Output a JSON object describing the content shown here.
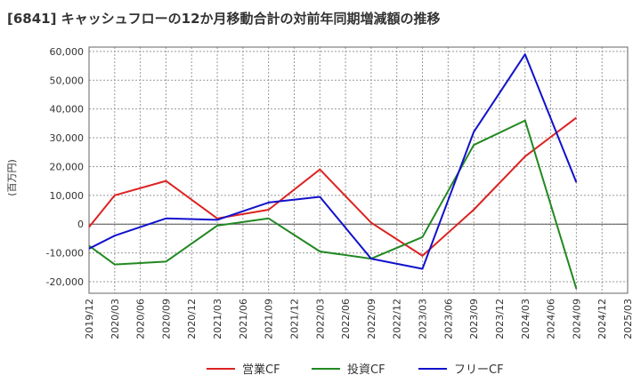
{
  "chart_data": {
    "type": "line",
    "title": "[6841]  キャッシュフローの12か月移動合計の対前年同期増減額の推移",
    "ylabel": "(百万円)",
    "xlabel": "",
    "ylim": [
      -24000,
      61500
    ],
    "yticks": [
      60000,
      50000,
      40000,
      30000,
      20000,
      10000,
      0,
      -10000,
      -20000
    ],
    "ytick_labels": [
      "60,000",
      "50,000",
      "40,000",
      "30,000",
      "20,000",
      "10,000",
      "0",
      "-10,000",
      "-20,000"
    ],
    "categories": [
      "2019/12",
      "2020/03",
      "2020/06",
      "2020/09",
      "2020/12",
      "2021/03",
      "2021/06",
      "2021/09",
      "2021/12",
      "2022/03",
      "2022/06",
      "2022/09",
      "2022/12",
      "2023/03",
      "2023/06",
      "2023/09",
      "2023/12",
      "2024/03",
      "2024/06",
      "2024/09",
      "2024/12",
      "2025/03"
    ],
    "series": [
      {
        "name": "営業CF",
        "color": "#dd2222",
        "values": [
          -1000,
          10000,
          null,
          15000,
          null,
          2000,
          null,
          5000,
          null,
          19000,
          null,
          500,
          null,
          -11000,
          null,
          5000,
          null,
          23500,
          null,
          37000,
          null,
          null
        ]
      },
      {
        "name": "投資CF",
        "color": "#228822",
        "values": [
          -7500,
          -14000,
          null,
          -13000,
          null,
          -500,
          null,
          2000,
          null,
          -9500,
          null,
          -12000,
          null,
          -4500,
          null,
          27500,
          null,
          36000,
          null,
          -22500,
          null,
          null
        ]
      },
      {
        "name": "フリーCF",
        "color": "#1111cc",
        "values": [
          -8500,
          -4000,
          null,
          2000,
          null,
          1500,
          null,
          7500,
          null,
          9500,
          null,
          -12000,
          null,
          -15500,
          null,
          32000,
          null,
          59000,
          null,
          14500,
          null,
          null
        ]
      }
    ],
    "legend_position": "bottom",
    "grid": true
  }
}
